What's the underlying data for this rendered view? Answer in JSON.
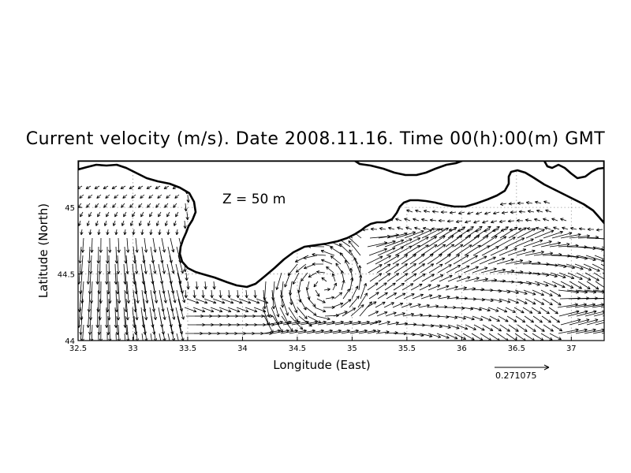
{
  "title": "Current velocity (m/s). Date 2008.11.16. Time 00(h):00(m) GMT",
  "depth_label": "Z = 50 m",
  "axes": {
    "xlabel": "Longitude (East)",
    "ylabel": "Latitude (North)",
    "xlim": [
      32.5,
      37.3
    ],
    "ylim": [
      44.0,
      45.35
    ],
    "xticks": [
      "32.5",
      "33",
      "33.5",
      "34",
      "34.5",
      "35",
      "35.5",
      "36",
      "36.5",
      "37"
    ],
    "yticks": [
      "44",
      "44.5",
      "45"
    ]
  },
  "reference_vector": {
    "label": "0.271075",
    "value": 0.271075
  },
  "style": {
    "coast_color": "#000000",
    "arrow_color": "#000000",
    "grid": true
  },
  "chart_data": {
    "type": "vector-field",
    "title": "Current velocity (m/s). Date 2008.11.16. Time 00(h):00(m) GMT",
    "xlabel": "Longitude (East)",
    "ylabel": "Latitude (North)",
    "xlim": [
      32.5,
      37.3
    ],
    "ylim": [
      44.0,
      45.35
    ],
    "grid": true
  }
}
